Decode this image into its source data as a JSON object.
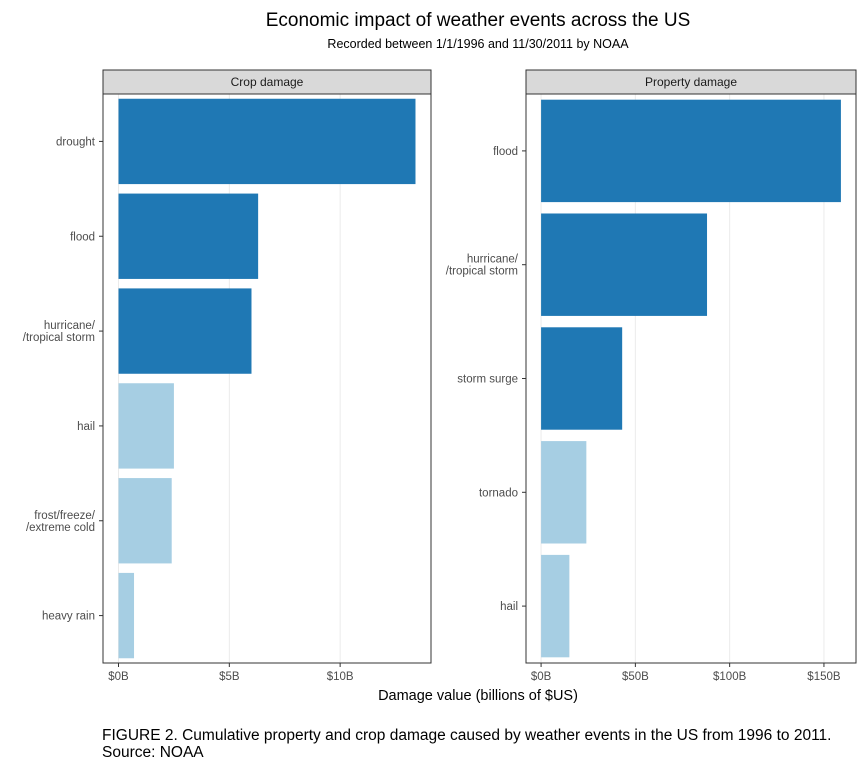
{
  "title": "Economic impact of weather events across the US",
  "subtitle": "Recorded between 1/1/1996 and 11/30/2011 by NOAA",
  "xlabel": "Damage value (billions of $US)",
  "caption_line1": "FIGURE 2. Cumulative property and crop damage caused by weather events in the US from 1996 to 2011.",
  "caption_line2": "Source: NOAA",
  "colors": {
    "dark": "#1f78b4",
    "light": "#a6cee3",
    "strip": "#d9d9d9",
    "grid": "#ebebeb"
  },
  "chart_data": [
    {
      "type": "bar",
      "orientation": "horizontal",
      "panel_title": "Crop damage",
      "categories": [
        "drought",
        "flood",
        "hurricane/\n/tropical storm",
        "hail",
        "frost/freeze/\n/extreme cold",
        "heavy rain"
      ],
      "values": [
        13.4,
        6.3,
        6.0,
        2.5,
        2.4,
        0.7
      ],
      "highlight": [
        true,
        true,
        true,
        false,
        false,
        false
      ],
      "xlim": [
        -0.7,
        14.1
      ],
      "ticks": [
        0,
        5,
        10
      ],
      "tick_labels": [
        "$0B",
        "$5B",
        "$10B"
      ]
    },
    {
      "type": "bar",
      "orientation": "horizontal",
      "panel_title": "Property damage",
      "categories": [
        "flood",
        "hurricane/\n/tropical storm",
        "storm surge",
        "tornado",
        "hail"
      ],
      "values": [
        159,
        88,
        43,
        24,
        15
      ],
      "highlight": [
        true,
        true,
        true,
        false,
        false
      ],
      "xlim": [
        -8,
        167
      ],
      "ticks": [
        0,
        50,
        100,
        150
      ],
      "tick_labels": [
        "$0B",
        "$50B",
        "$100B",
        "$150B"
      ]
    }
  ]
}
